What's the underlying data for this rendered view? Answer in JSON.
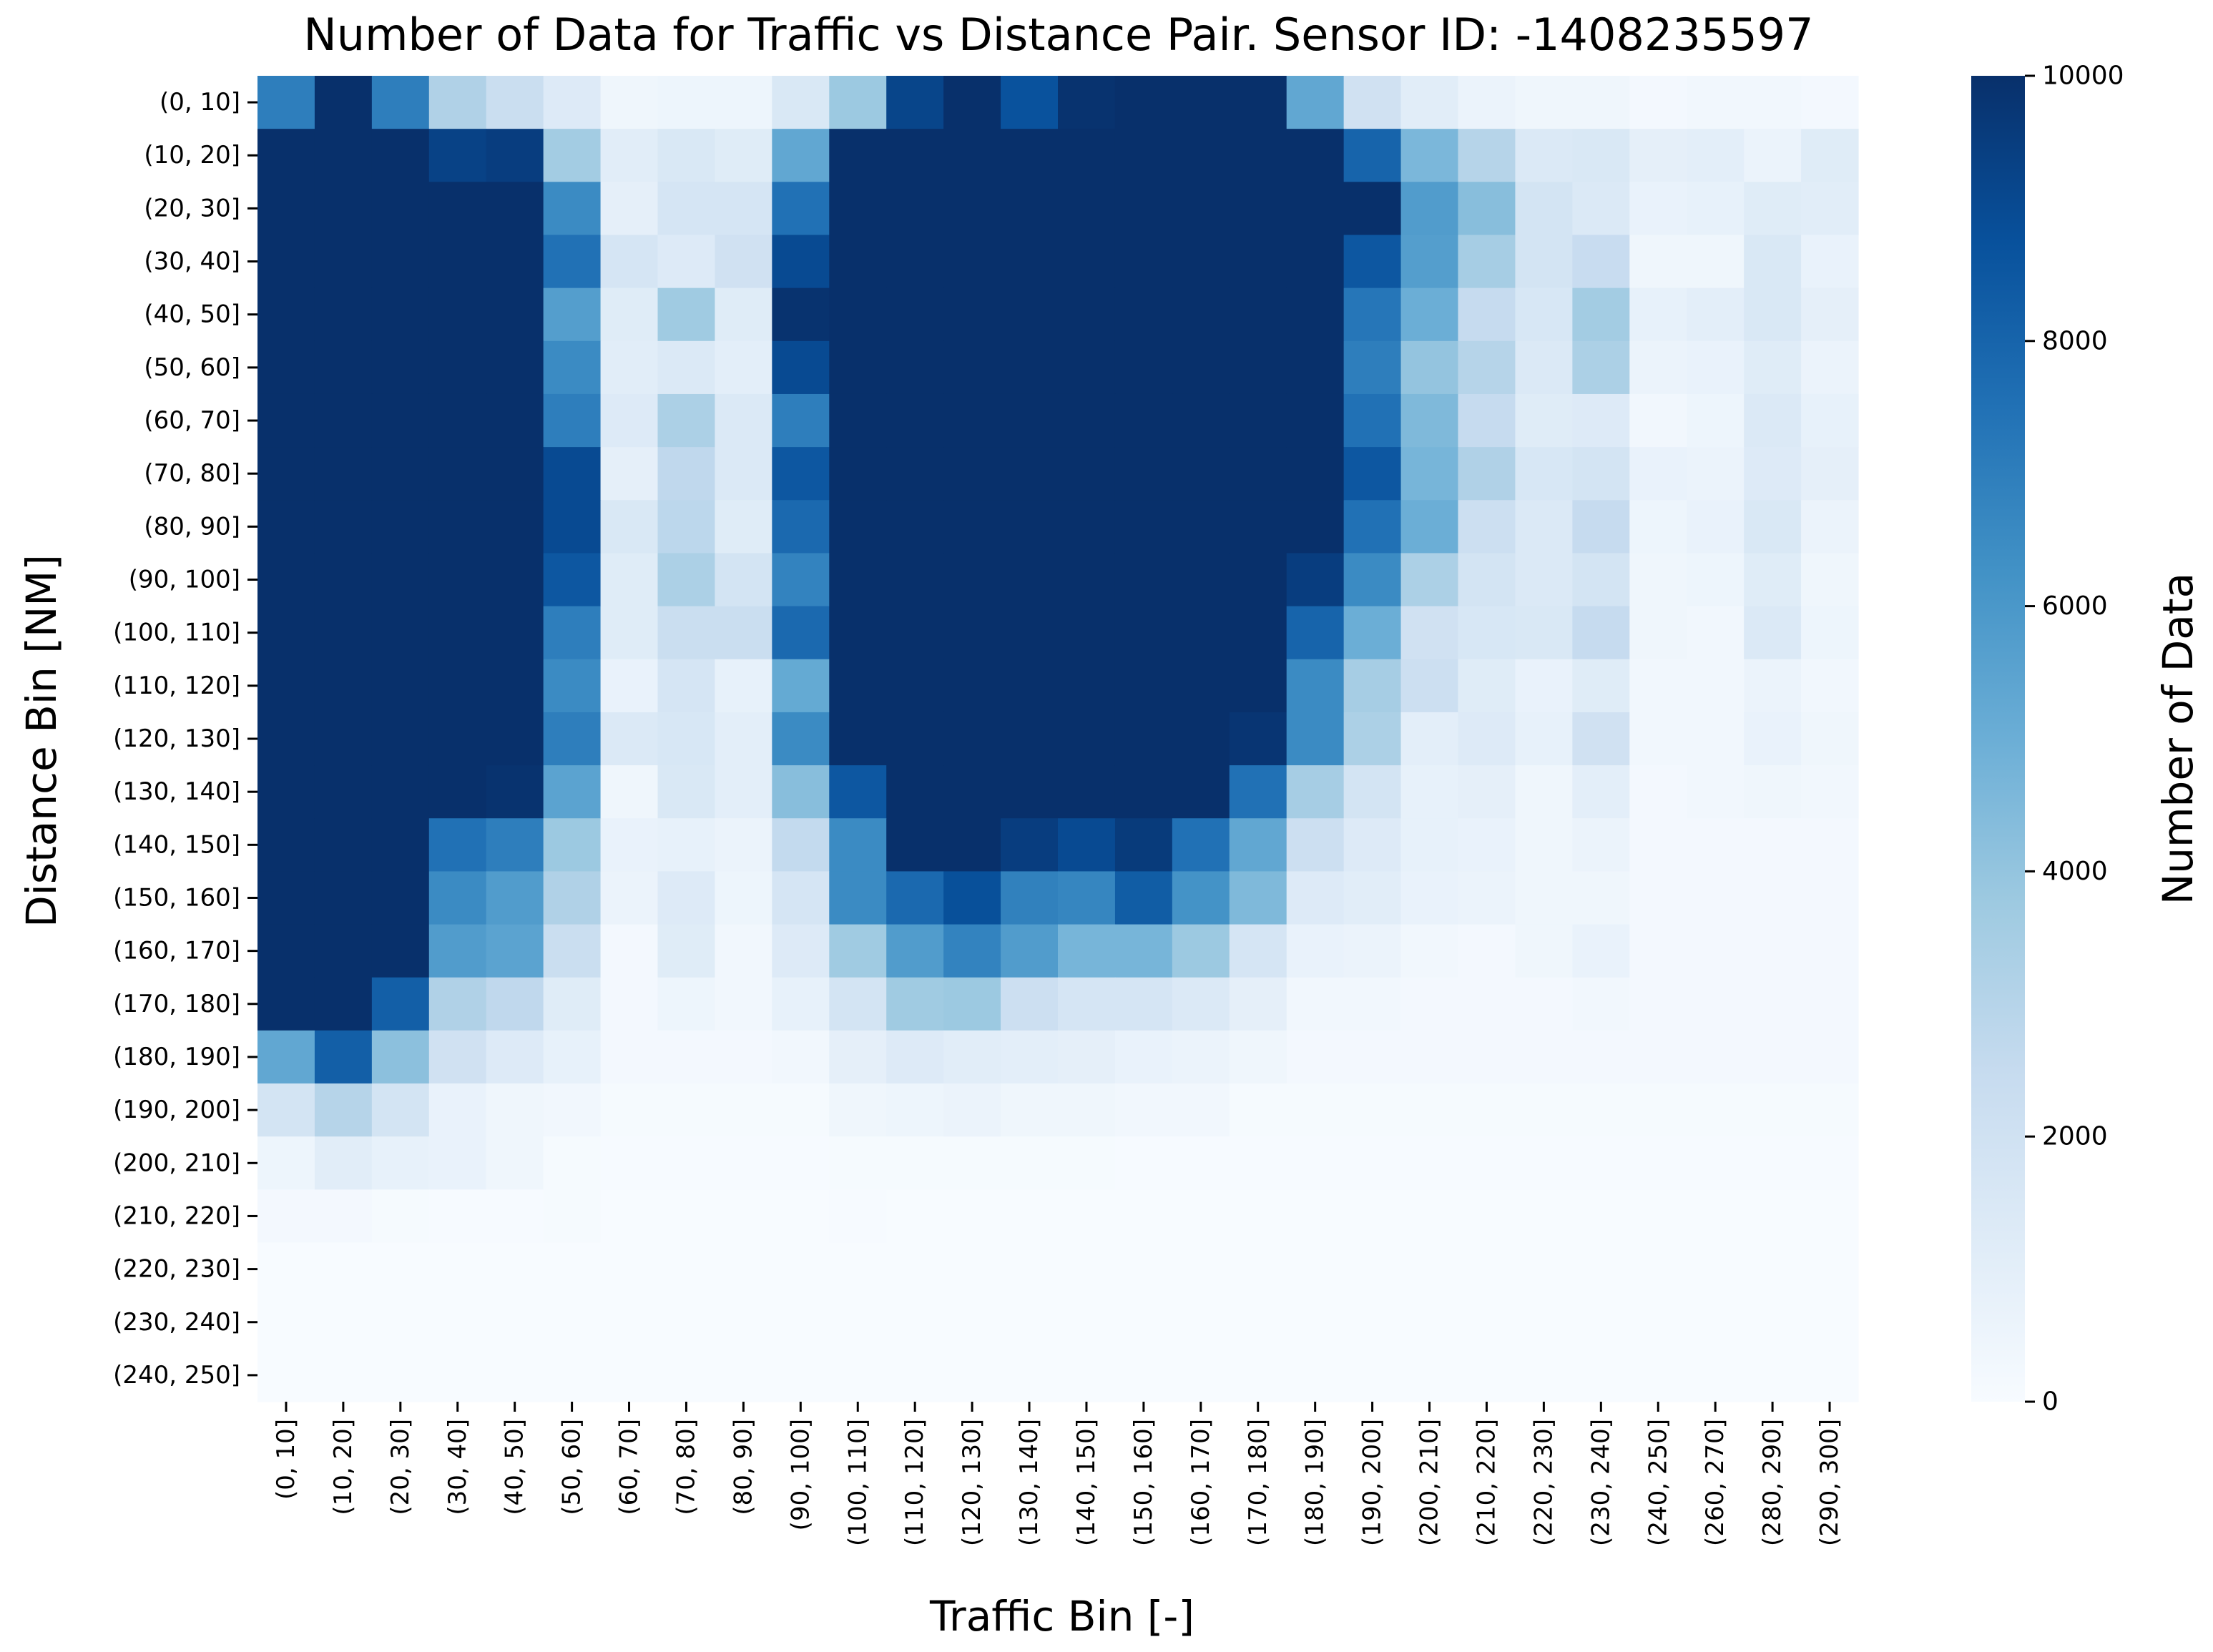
{
  "chart_data": {
    "type": "heatmap",
    "title": "Number of Data for Traffic vs Distance Pair. Sensor ID: -1408235597",
    "xlabel": "Traffic Bin [-]",
    "ylabel": "Distance Bin [NM]",
    "colorbar_label": "Number of Data",
    "colorbar_range": [
      0,
      10000
    ],
    "colorbar_ticks": [
      "0",
      "2000",
      "4000",
      "6000",
      "8000",
      "10000"
    ],
    "colormap": "Blues",
    "x_categories": [
      "(0, 10]",
      "(10, 20]",
      "(20, 30]",
      "(30, 40]",
      "(40, 50]",
      "(50, 60]",
      "(60, 70]",
      "(70, 80]",
      "(80, 90]",
      "(90, 100]",
      "(100, 110]",
      "(110, 120]",
      "(120, 130]",
      "(130, 140]",
      "(140, 150]",
      "(150, 160]",
      "(160, 170]",
      "(170, 180]",
      "(180, 190]",
      "(190, 200]",
      "(200, 210]",
      "(210, 220]",
      "(220, 230]",
      "(230, 240]",
      "(240, 250]",
      "(260, 270]",
      "(280, 290]",
      "(290, 300]"
    ],
    "y_categories": [
      "(0, 10]",
      "(10, 20]",
      "(20, 30]",
      "(30, 40]",
      "(40, 50]",
      "(50, 60]",
      "(60, 70]",
      "(70, 80]",
      "(80, 90]",
      "(90, 100]",
      "(100, 110]",
      "(110, 120]",
      "(120, 130]",
      "(130, 140]",
      "(140, 150]",
      "(150, 160]",
      "(160, 170]",
      "(170, 180]",
      "(180, 190]",
      "(190, 200]",
      "(200, 210]",
      "(210, 220]",
      "(220, 230]",
      "(230, 240]",
      "(240, 250]"
    ],
    "values": [
      [
        7000,
        10000,
        7000,
        3200,
        2300,
        1300,
        400,
        500,
        500,
        1500,
        3800,
        9200,
        10000,
        8700,
        9900,
        10000,
        10000,
        10000,
        5300,
        2000,
        1100,
        600,
        400,
        400,
        200,
        300,
        300,
        200
      ],
      [
        10000,
        10000,
        10000,
        9300,
        9500,
        3600,
        1100,
        1500,
        1200,
        5300,
        10000,
        10000,
        10000,
        10000,
        10000,
        10000,
        10000,
        10000,
        10000,
        8000,
        4600,
        3000,
        1400,
        1500,
        900,
        1000,
        600,
        1200
      ],
      [
        10000,
        10000,
        10000,
        10000,
        10000,
        6500,
        900,
        1700,
        1700,
        7500,
        10000,
        10000,
        10000,
        10000,
        10000,
        10000,
        10000,
        10000,
        10000,
        10000,
        5800,
        4300,
        1800,
        1400,
        700,
        800,
        1200,
        1100
      ],
      [
        10000,
        10000,
        10000,
        10000,
        10000,
        7500,
        1700,
        1300,
        2000,
        9000,
        10000,
        10000,
        10000,
        10000,
        10000,
        10000,
        10000,
        10000,
        10000,
        8500,
        5700,
        3500,
        1800,
        2400,
        400,
        400,
        1500,
        700
      ],
      [
        10000,
        10000,
        10000,
        10000,
        10000,
        5700,
        1200,
        3700,
        1200,
        9900,
        10000,
        10000,
        10000,
        10000,
        10000,
        10000,
        10000,
        10000,
        10000,
        7300,
        5000,
        2500,
        1600,
        3600,
        800,
        1000,
        1500,
        900
      ],
      [
        10000,
        10000,
        10000,
        10000,
        10000,
        6500,
        1100,
        1400,
        1000,
        9000,
        10000,
        10000,
        10000,
        10000,
        10000,
        10000,
        10000,
        10000,
        10000,
        7000,
        4000,
        3000,
        1400,
        3300,
        600,
        700,
        1200,
        600
      ],
      [
        10000,
        10000,
        10000,
        10000,
        10000,
        7000,
        1300,
        3300,
        1400,
        7000,
        10000,
        10000,
        10000,
        10000,
        10000,
        10000,
        10000,
        10000,
        10000,
        7500,
        4500,
        2500,
        1200,
        1300,
        300,
        500,
        1400,
        800
      ],
      [
        10000,
        10000,
        10000,
        10000,
        10000,
        9000,
        900,
        2700,
        1400,
        8500,
        10000,
        10000,
        10000,
        10000,
        10000,
        10000,
        10000,
        10000,
        10000,
        8500,
        4700,
        3200,
        1600,
        1800,
        700,
        600,
        1300,
        900
      ],
      [
        10000,
        10000,
        10000,
        10000,
        10000,
        9000,
        1500,
        2800,
        1200,
        7800,
        10000,
        10000,
        10000,
        10000,
        10000,
        10000,
        10000,
        10000,
        10000,
        7500,
        5000,
        2200,
        1400,
        2500,
        500,
        700,
        1500,
        600
      ],
      [
        10000,
        10000,
        10000,
        10000,
        10000,
        8500,
        1200,
        3300,
        1800,
        6800,
        10000,
        10000,
        10000,
        10000,
        10000,
        10000,
        10000,
        10000,
        9500,
        6500,
        3300,
        1800,
        1400,
        1800,
        400,
        500,
        1200,
        400
      ],
      [
        10000,
        10000,
        10000,
        10000,
        10000,
        7000,
        1200,
        2300,
        2300,
        7800,
        10000,
        10000,
        10000,
        10000,
        10000,
        10000,
        10000,
        10000,
        8000,
        5000,
        2000,
        1600,
        1500,
        2500,
        400,
        300,
        1400,
        500
      ],
      [
        10000,
        10000,
        10000,
        10000,
        10000,
        6500,
        700,
        1700,
        800,
        5200,
        10000,
        10000,
        10000,
        10000,
        10000,
        10000,
        10000,
        10000,
        6500,
        3500,
        2200,
        1200,
        700,
        1200,
        300,
        300,
        600,
        300
      ],
      [
        10000,
        10000,
        10000,
        10000,
        10000,
        7000,
        1400,
        1600,
        1000,
        6500,
        10000,
        10000,
        10000,
        10000,
        10000,
        10000,
        10000,
        9800,
        6500,
        3300,
        1000,
        1300,
        800,
        2000,
        300,
        300,
        700,
        400
      ],
      [
        10000,
        10000,
        10000,
        10000,
        9900,
        5500,
        400,
        1500,
        1000,
        4300,
        8500,
        10000,
        10000,
        10000,
        10000,
        10000,
        10000,
        7500,
        3500,
        1800,
        800,
        900,
        400,
        1000,
        200,
        300,
        400,
        300
      ],
      [
        10000,
        10000,
        10000,
        7500,
        7000,
        3800,
        700,
        800,
        600,
        2600,
        6500,
        10000,
        10000,
        9500,
        9000,
        9600,
        7500,
        5300,
        2200,
        1300,
        800,
        700,
        400,
        600,
        200,
        200,
        200,
        200
      ],
      [
        10000,
        10000,
        10000,
        6500,
        5800,
        3200,
        600,
        1300,
        500,
        1700,
        6500,
        7800,
        8800,
        6900,
        6700,
        8300,
        6200,
        4500,
        1300,
        1100,
        700,
        600,
        400,
        400,
        200,
        200,
        200,
        200
      ],
      [
        10000,
        10000,
        10000,
        5800,
        5500,
        2300,
        200,
        1200,
        300,
        1300,
        3700,
        5800,
        6800,
        5800,
        4700,
        4700,
        3800,
        1700,
        700,
        600,
        300,
        200,
        400,
        700,
        200,
        200,
        200,
        200
      ],
      [
        10000,
        10000,
        8200,
        3200,
        2700,
        1200,
        200,
        500,
        300,
        800,
        1800,
        3700,
        3800,
        2200,
        1700,
        1700,
        1400,
        900,
        300,
        300,
        200,
        200,
        200,
        300,
        200,
        200,
        200,
        200
      ],
      [
        5300,
        8200,
        4200,
        2000,
        1300,
        800,
        200,
        200,
        200,
        300,
        900,
        1300,
        1100,
        1000,
        900,
        700,
        600,
        400,
        200,
        200,
        200,
        200,
        200,
        200,
        200,
        200,
        200,
        200
      ],
      [
        1800,
        3000,
        1800,
        700,
        400,
        300,
        100,
        100,
        100,
        100,
        400,
        500,
        600,
        400,
        400,
        300,
        300,
        100,
        100,
        100,
        100,
        100,
        100,
        100,
        100,
        100,
        100,
        100
      ],
      [
        500,
        1100,
        800,
        700,
        400,
        100,
        50,
        50,
        50,
        50,
        100,
        100,
        100,
        100,
        100,
        50,
        50,
        50,
        50,
        50,
        50,
        50,
        50,
        50,
        50,
        50,
        50,
        50
      ],
      [
        200,
        200,
        100,
        50,
        50,
        100,
        0,
        0,
        0,
        0,
        50,
        0,
        0,
        0,
        0,
        0,
        0,
        0,
        0,
        0,
        0,
        0,
        0,
        0,
        0,
        0,
        0,
        0
      ],
      [
        0,
        0,
        0,
        0,
        0,
        0,
        0,
        0,
        0,
        0,
        0,
        0,
        0,
        0,
        0,
        0,
        0,
        0,
        0,
        0,
        0,
        0,
        0,
        0,
        0,
        0,
        0,
        0
      ],
      [
        0,
        0,
        0,
        0,
        0,
        0,
        0,
        0,
        0,
        0,
        0,
        0,
        0,
        0,
        0,
        0,
        0,
        0,
        0,
        0,
        0,
        0,
        0,
        0,
        0,
        0,
        0,
        0
      ],
      [
        0,
        0,
        0,
        0,
        0,
        0,
        0,
        0,
        0,
        0,
        0,
        0,
        0,
        0,
        0,
        0,
        0,
        0,
        0,
        0,
        0,
        0,
        0,
        0,
        0,
        0,
        0,
        0
      ]
    ]
  }
}
